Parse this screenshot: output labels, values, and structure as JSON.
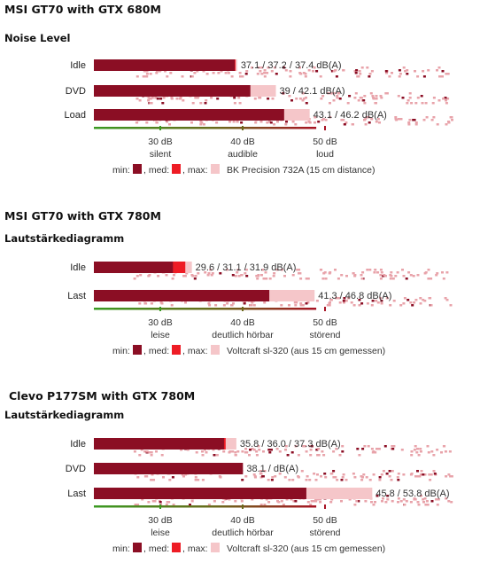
{
  "colors": {
    "min": "#8b0e24",
    "med": "#ee1c25",
    "max": "#f5c6c9",
    "dots": "#e8a3aa",
    "axis_green": "#3a9a22",
    "axis_red": "#a81424"
  },
  "chart_data": [
    {
      "type": "bar",
      "title": "MSI GT70 with GTX 680M",
      "subtitle": "Noise Level",
      "xlim": [
        20,
        56
      ],
      "categories": [
        "Idle",
        "DVD",
        "Load"
      ],
      "series": [
        {
          "name": "min",
          "values": [
            37.1,
            39,
            43.1
          ]
        },
        {
          "name": "med",
          "values": [
            37.2,
            null,
            null
          ]
        },
        {
          "name": "max",
          "values": [
            37.4,
            42.1,
            46.2
          ]
        }
      ],
      "value_labels": [
        "37.1 / 37.2 / 37.4 dB(A)",
        "39 / 42.1 dB(A)",
        "43.1 / 46.2 dB(A)"
      ],
      "ticks": [
        {
          "value": 30,
          "label": "30 dB",
          "sublabel": "silent"
        },
        {
          "value": 40,
          "label": "40 dB",
          "sublabel": "audible"
        },
        {
          "value": 50,
          "label": "50 dB",
          "sublabel": "loud"
        }
      ],
      "legend": {
        "min": "min:",
        "med": ", med:",
        "max": ", max:",
        "note": "BK Precision 732A (15 cm distance)"
      }
    },
    {
      "type": "bar",
      "title": "MSI GT70 with GTX 780M",
      "subtitle": "Lautstärkediagramm",
      "xlim": [
        20,
        56
      ],
      "categories": [
        "Idle",
        "Last"
      ],
      "series": [
        {
          "name": "min",
          "values": [
            29.6,
            41.3
          ]
        },
        {
          "name": "med",
          "values": [
            31.1,
            null
          ]
        },
        {
          "name": "max",
          "values": [
            31.9,
            46.8
          ]
        }
      ],
      "value_labels": [
        "29.6 / 31.1 / 31.9 dB(A)",
        "41.3 / 46.8 dB(A)"
      ],
      "ticks": [
        {
          "value": 30,
          "label": "30 dB",
          "sublabel": "leise"
        },
        {
          "value": 40,
          "label": "40 dB",
          "sublabel": "deutlich hörbar"
        },
        {
          "value": 50,
          "label": "50 dB",
          "sublabel": "störend"
        }
      ],
      "legend": {
        "min": "min:",
        "med": ", med:",
        "max": ", max:",
        "note": "Voltcraft sl-320 (aus 15 cm gemessen)"
      }
    },
    {
      "type": "bar",
      "title": "Clevo P177SM with GTX 780M",
      "subtitle": "Lautstärkediagramm",
      "xlim": [
        20,
        56
      ],
      "categories": [
        "Idle",
        "DVD",
        "Last"
      ],
      "series": [
        {
          "name": "min",
          "values": [
            35.8,
            38.1,
            45.8
          ]
        },
        {
          "name": "med",
          "values": [
            36.0,
            null,
            null
          ]
        },
        {
          "name": "max",
          "values": [
            37.3,
            null,
            53.8
          ]
        }
      ],
      "value_labels": [
        "35.8 / 36.0 / 37.3 dB(A)",
        "38.1 / dB(A)",
        "45.8 / 53.8 dB(A)"
      ],
      "ticks": [
        {
          "value": 30,
          "label": "30 dB",
          "sublabel": "leise"
        },
        {
          "value": 40,
          "label": "40 dB",
          "sublabel": "deutlich hörbar"
        },
        {
          "value": 50,
          "label": "50 dB",
          "sublabel": "störend"
        }
      ],
      "legend": {
        "min": "min:",
        "med": ", med:",
        "max": ", max:",
        "note": "Voltcraft sl-320 (aus 15 cm gemessen)"
      }
    }
  ]
}
